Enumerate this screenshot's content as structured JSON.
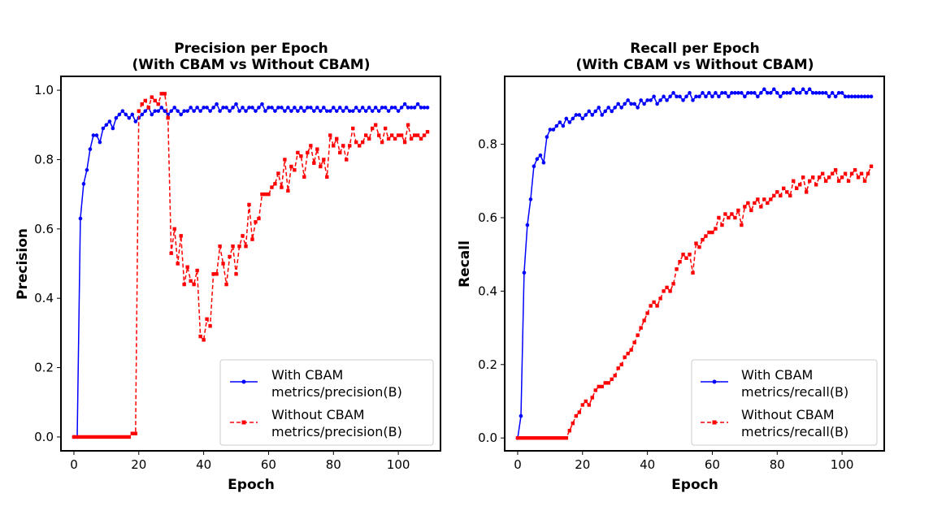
{
  "chart_data": [
    {
      "type": "line",
      "title": "Precision per Epoch",
      "subtitle": "(With CBAM vs Without CBAM)",
      "xlabel": "Epoch",
      "ylabel": "Precision",
      "xlim": [
        -4,
        113
      ],
      "ylim": [
        -0.04,
        1.04
      ],
      "xticks": [
        0,
        20,
        40,
        60,
        80,
        100
      ],
      "yticks": [
        0.0,
        0.2,
        0.4,
        0.6,
        0.8,
        1.0
      ],
      "xtick_labels": [
        "0",
        "20",
        "40",
        "60",
        "80",
        "100"
      ],
      "ytick_labels": [
        "0.0",
        "0.2",
        "0.4",
        "0.6",
        "0.8",
        "1.0"
      ],
      "legend": {
        "position": "lower-right",
        "entries": [
          {
            "line1": "With CBAM",
            "line2": "metrics/precision(B)"
          },
          {
            "line1": "Without CBAM",
            "line2": "metrics/precision(B)"
          }
        ]
      },
      "series": [
        {
          "name": "With CBAM metrics/precision(B)",
          "color": "#0000ff",
          "style": "solid",
          "marker": "circle",
          "x": [
            0,
            1,
            2,
            3,
            4,
            5,
            6,
            7,
            8,
            9,
            10,
            11,
            12,
            13,
            14,
            15,
            16,
            17,
            18,
            19,
            20,
            21,
            22,
            23,
            24,
            25,
            26,
            27,
            28,
            29,
            30,
            31,
            32,
            33,
            34,
            35,
            36,
            37,
            38,
            39,
            40,
            41,
            42,
            43,
            44,
            45,
            46,
            47,
            48,
            49,
            50,
            51,
            52,
            53,
            54,
            55,
            56,
            57,
            58,
            59,
            60,
            61,
            62,
            63,
            64,
            65,
            66,
            67,
            68,
            69,
            70,
            71,
            72,
            73,
            74,
            75,
            76,
            77,
            78,
            79,
            80,
            81,
            82,
            83,
            84,
            85,
            86,
            87,
            88,
            89,
            90,
            91,
            92,
            93,
            94,
            95,
            96,
            97,
            98,
            99,
            100,
            101,
            102,
            103,
            104,
            105,
            106,
            107,
            108,
            109
          ],
          "values": [
            0.0,
            0.0,
            0.63,
            0.73,
            0.77,
            0.83,
            0.87,
            0.87,
            0.85,
            0.89,
            0.9,
            0.91,
            0.89,
            0.92,
            0.93,
            0.94,
            0.93,
            0.92,
            0.93,
            0.91,
            0.92,
            0.93,
            0.94,
            0.95,
            0.93,
            0.94,
            0.94,
            0.95,
            0.94,
            0.93,
            0.94,
            0.95,
            0.94,
            0.93,
            0.94,
            0.94,
            0.95,
            0.94,
            0.95,
            0.94,
            0.95,
            0.95,
            0.94,
            0.95,
            0.96,
            0.94,
            0.95,
            0.95,
            0.94,
            0.95,
            0.96,
            0.94,
            0.95,
            0.94,
            0.95,
            0.95,
            0.94,
            0.95,
            0.96,
            0.94,
            0.95,
            0.95,
            0.94,
            0.95,
            0.95,
            0.94,
            0.95,
            0.94,
            0.95,
            0.94,
            0.95,
            0.94,
            0.95,
            0.95,
            0.94,
            0.95,
            0.94,
            0.95,
            0.94,
            0.94,
            0.95,
            0.94,
            0.95,
            0.94,
            0.95,
            0.94,
            0.94,
            0.95,
            0.94,
            0.95,
            0.94,
            0.95,
            0.94,
            0.95,
            0.94,
            0.95,
            0.95,
            0.94,
            0.95,
            0.95,
            0.94,
            0.95,
            0.96,
            0.95,
            0.95,
            0.95,
            0.96,
            0.95,
            0.95,
            0.95
          ]
        },
        {
          "name": "Without CBAM metrics/precision(B)",
          "color": "#ff0000",
          "style": "dashed",
          "marker": "square",
          "x": [
            0,
            1,
            2,
            3,
            4,
            5,
            6,
            7,
            8,
            9,
            10,
            11,
            12,
            13,
            14,
            15,
            16,
            17,
            18,
            19,
            20,
            21,
            22,
            23,
            24,
            25,
            26,
            27,
            28,
            29,
            30,
            31,
            32,
            33,
            34,
            35,
            36,
            37,
            38,
            39,
            40,
            41,
            42,
            43,
            44,
            45,
            46,
            47,
            48,
            49,
            50,
            51,
            52,
            53,
            54,
            55,
            56,
            57,
            58,
            59,
            60,
            61,
            62,
            63,
            64,
            65,
            66,
            67,
            68,
            69,
            70,
            71,
            72,
            73,
            74,
            75,
            76,
            77,
            78,
            79,
            80,
            81,
            82,
            83,
            84,
            85,
            86,
            87,
            88,
            89,
            90,
            91,
            92,
            93,
            94,
            95,
            96,
            97,
            98,
            99,
            100,
            101,
            102,
            103,
            104,
            105,
            106,
            107,
            108,
            109
          ],
          "values": [
            0.0,
            0.0,
            0.0,
            0.0,
            0.0,
            0.0,
            0.0,
            0.0,
            0.0,
            0.0,
            0.0,
            0.0,
            0.0,
            0.0,
            0.0,
            0.0,
            0.0,
            0.0,
            0.01,
            0.01,
            0.94,
            0.96,
            0.97,
            0.95,
            0.98,
            0.97,
            0.96,
            0.99,
            0.99,
            0.92,
            0.53,
            0.6,
            0.5,
            0.58,
            0.44,
            0.49,
            0.45,
            0.44,
            0.48,
            0.29,
            0.28,
            0.34,
            0.32,
            0.47,
            0.47,
            0.55,
            0.5,
            0.44,
            0.52,
            0.55,
            0.47,
            0.55,
            0.58,
            0.55,
            0.67,
            0.57,
            0.62,
            0.63,
            0.7,
            0.7,
            0.7,
            0.72,
            0.73,
            0.76,
            0.72,
            0.8,
            0.71,
            0.78,
            0.77,
            0.82,
            0.81,
            0.75,
            0.82,
            0.84,
            0.79,
            0.83,
            0.78,
            0.8,
            0.75,
            0.87,
            0.84,
            0.86,
            0.82,
            0.84,
            0.8,
            0.84,
            0.89,
            0.85,
            0.84,
            0.85,
            0.87,
            0.86,
            0.89,
            0.9,
            0.87,
            0.85,
            0.89,
            0.86,
            0.87,
            0.86,
            0.87,
            0.87,
            0.85,
            0.9,
            0.86,
            0.87,
            0.87,
            0.86,
            0.87,
            0.88
          ]
        }
      ]
    },
    {
      "type": "line",
      "title": "Recall per Epoch",
      "subtitle": "(With CBAM vs Without CBAM)",
      "xlabel": "Epoch",
      "ylabel": "Recall",
      "xlim": [
        -4,
        113
      ],
      "ylim": [
        -0.035,
        0.985
      ],
      "xticks": [
        0,
        20,
        40,
        60,
        80,
        100
      ],
      "yticks": [
        0.0,
        0.2,
        0.4,
        0.6,
        0.8
      ],
      "xtick_labels": [
        "0",
        "20",
        "40",
        "60",
        "80",
        "100"
      ],
      "ytick_labels": [
        "0.0",
        "0.2",
        "0.4",
        "0.6",
        "0.8"
      ],
      "legend": {
        "position": "lower-right",
        "entries": [
          {
            "line1": "With CBAM",
            "line2": "metrics/recall(B)"
          },
          {
            "line1": "Without CBAM",
            "line2": "metrics/recall(B)"
          }
        ]
      },
      "series": [
        {
          "name": "With CBAM metrics/recall(B)",
          "color": "#0000ff",
          "style": "solid",
          "marker": "circle",
          "x": [
            0,
            1,
            2,
            3,
            4,
            5,
            6,
            7,
            8,
            9,
            10,
            11,
            12,
            13,
            14,
            15,
            16,
            17,
            18,
            19,
            20,
            21,
            22,
            23,
            24,
            25,
            26,
            27,
            28,
            29,
            30,
            31,
            32,
            33,
            34,
            35,
            36,
            37,
            38,
            39,
            40,
            41,
            42,
            43,
            44,
            45,
            46,
            47,
            48,
            49,
            50,
            51,
            52,
            53,
            54,
            55,
            56,
            57,
            58,
            59,
            60,
            61,
            62,
            63,
            64,
            65,
            66,
            67,
            68,
            69,
            70,
            71,
            72,
            73,
            74,
            75,
            76,
            77,
            78,
            79,
            80,
            81,
            82,
            83,
            84,
            85,
            86,
            87,
            88,
            89,
            90,
            91,
            92,
            93,
            94,
            95,
            96,
            97,
            98,
            99,
            100,
            101,
            102,
            103,
            104,
            105,
            106,
            107,
            108,
            109
          ],
          "values": [
            0.0,
            0.06,
            0.45,
            0.58,
            0.65,
            0.74,
            0.76,
            0.77,
            0.75,
            0.82,
            0.84,
            0.84,
            0.85,
            0.86,
            0.85,
            0.87,
            0.86,
            0.87,
            0.88,
            0.88,
            0.87,
            0.88,
            0.89,
            0.88,
            0.89,
            0.9,
            0.88,
            0.89,
            0.9,
            0.89,
            0.9,
            0.91,
            0.9,
            0.91,
            0.92,
            0.91,
            0.91,
            0.9,
            0.92,
            0.91,
            0.92,
            0.92,
            0.93,
            0.91,
            0.92,
            0.93,
            0.92,
            0.93,
            0.94,
            0.93,
            0.93,
            0.92,
            0.93,
            0.94,
            0.92,
            0.93,
            0.93,
            0.94,
            0.93,
            0.94,
            0.93,
            0.94,
            0.93,
            0.94,
            0.94,
            0.93,
            0.94,
            0.94,
            0.94,
            0.94,
            0.93,
            0.94,
            0.94,
            0.94,
            0.93,
            0.94,
            0.95,
            0.94,
            0.94,
            0.95,
            0.94,
            0.93,
            0.94,
            0.94,
            0.94,
            0.95,
            0.94,
            0.94,
            0.95,
            0.94,
            0.95,
            0.94,
            0.94,
            0.94,
            0.94,
            0.94,
            0.93,
            0.94,
            0.93,
            0.94,
            0.94,
            0.93,
            0.93,
            0.93,
            0.93,
            0.93,
            0.93,
            0.93,
            0.93,
            0.93
          ]
        },
        {
          "name": "Without CBAM metrics/recall(B)",
          "color": "#ff0000",
          "style": "dashed",
          "marker": "square",
          "x": [
            0,
            1,
            2,
            3,
            4,
            5,
            6,
            7,
            8,
            9,
            10,
            11,
            12,
            13,
            14,
            15,
            16,
            17,
            18,
            19,
            20,
            21,
            22,
            23,
            24,
            25,
            26,
            27,
            28,
            29,
            30,
            31,
            32,
            33,
            34,
            35,
            36,
            37,
            38,
            39,
            40,
            41,
            42,
            43,
            44,
            45,
            46,
            47,
            48,
            49,
            50,
            51,
            52,
            53,
            54,
            55,
            56,
            57,
            58,
            59,
            60,
            61,
            62,
            63,
            64,
            65,
            66,
            67,
            68,
            69,
            70,
            71,
            72,
            73,
            74,
            75,
            76,
            77,
            78,
            79,
            80,
            81,
            82,
            83,
            84,
            85,
            86,
            87,
            88,
            89,
            90,
            91,
            92,
            93,
            94,
            95,
            96,
            97,
            98,
            99,
            100,
            101,
            102,
            103,
            104,
            105,
            106,
            107,
            108,
            109
          ],
          "values": [
            0.0,
            0.0,
            0.0,
            0.0,
            0.0,
            0.0,
            0.0,
            0.0,
            0.0,
            0.0,
            0.0,
            0.0,
            0.0,
            0.0,
            0.0,
            0.0,
            0.02,
            0.04,
            0.06,
            0.07,
            0.09,
            0.1,
            0.09,
            0.11,
            0.13,
            0.14,
            0.14,
            0.15,
            0.15,
            0.16,
            0.17,
            0.19,
            0.2,
            0.22,
            0.23,
            0.24,
            0.26,
            0.28,
            0.3,
            0.32,
            0.34,
            0.36,
            0.37,
            0.36,
            0.38,
            0.4,
            0.41,
            0.4,
            0.42,
            0.46,
            0.48,
            0.5,
            0.49,
            0.5,
            0.45,
            0.53,
            0.52,
            0.54,
            0.55,
            0.56,
            0.56,
            0.57,
            0.6,
            0.58,
            0.61,
            0.6,
            0.61,
            0.6,
            0.62,
            0.58,
            0.63,
            0.64,
            0.62,
            0.64,
            0.65,
            0.63,
            0.65,
            0.64,
            0.65,
            0.66,
            0.67,
            0.66,
            0.68,
            0.67,
            0.66,
            0.7,
            0.68,
            0.69,
            0.71,
            0.67,
            0.7,
            0.71,
            0.69,
            0.71,
            0.72,
            0.7,
            0.71,
            0.72,
            0.73,
            0.7,
            0.71,
            0.72,
            0.7,
            0.72,
            0.73,
            0.71,
            0.72,
            0.7,
            0.72,
            0.74
          ]
        }
      ]
    }
  ]
}
